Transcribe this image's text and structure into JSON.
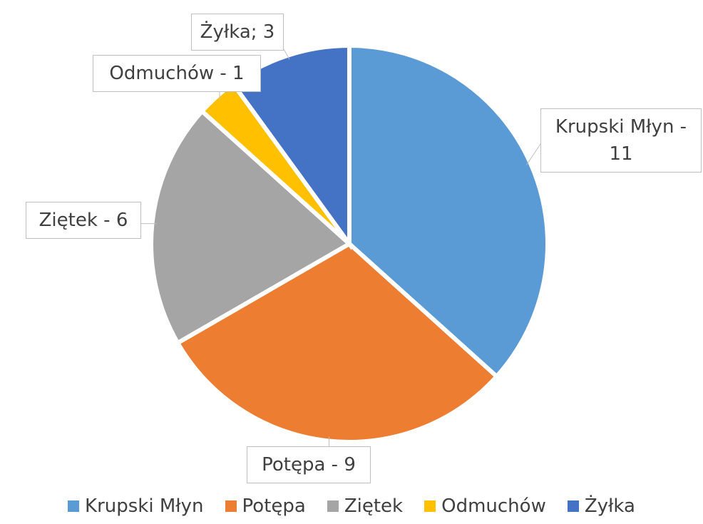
{
  "chart_data": {
    "type": "pie",
    "categories": [
      "Krupski Młyn",
      "Potępa",
      "Ziętek",
      "Odmuchów",
      "Żyłka"
    ],
    "values": [
      11,
      9,
      6,
      1,
      3
    ],
    "value_labels": [
      "Krupski Młyn - 11",
      "Potępa - 9",
      "Ziętek - 6",
      "Odmuchów - 1",
      "Żyłka; 3"
    ],
    "colors": [
      "#5b9bd5",
      "#ed7d31",
      "#a5a5a5",
      "#ffc000",
      "#4472c4"
    ],
    "legend": "bottom"
  }
}
